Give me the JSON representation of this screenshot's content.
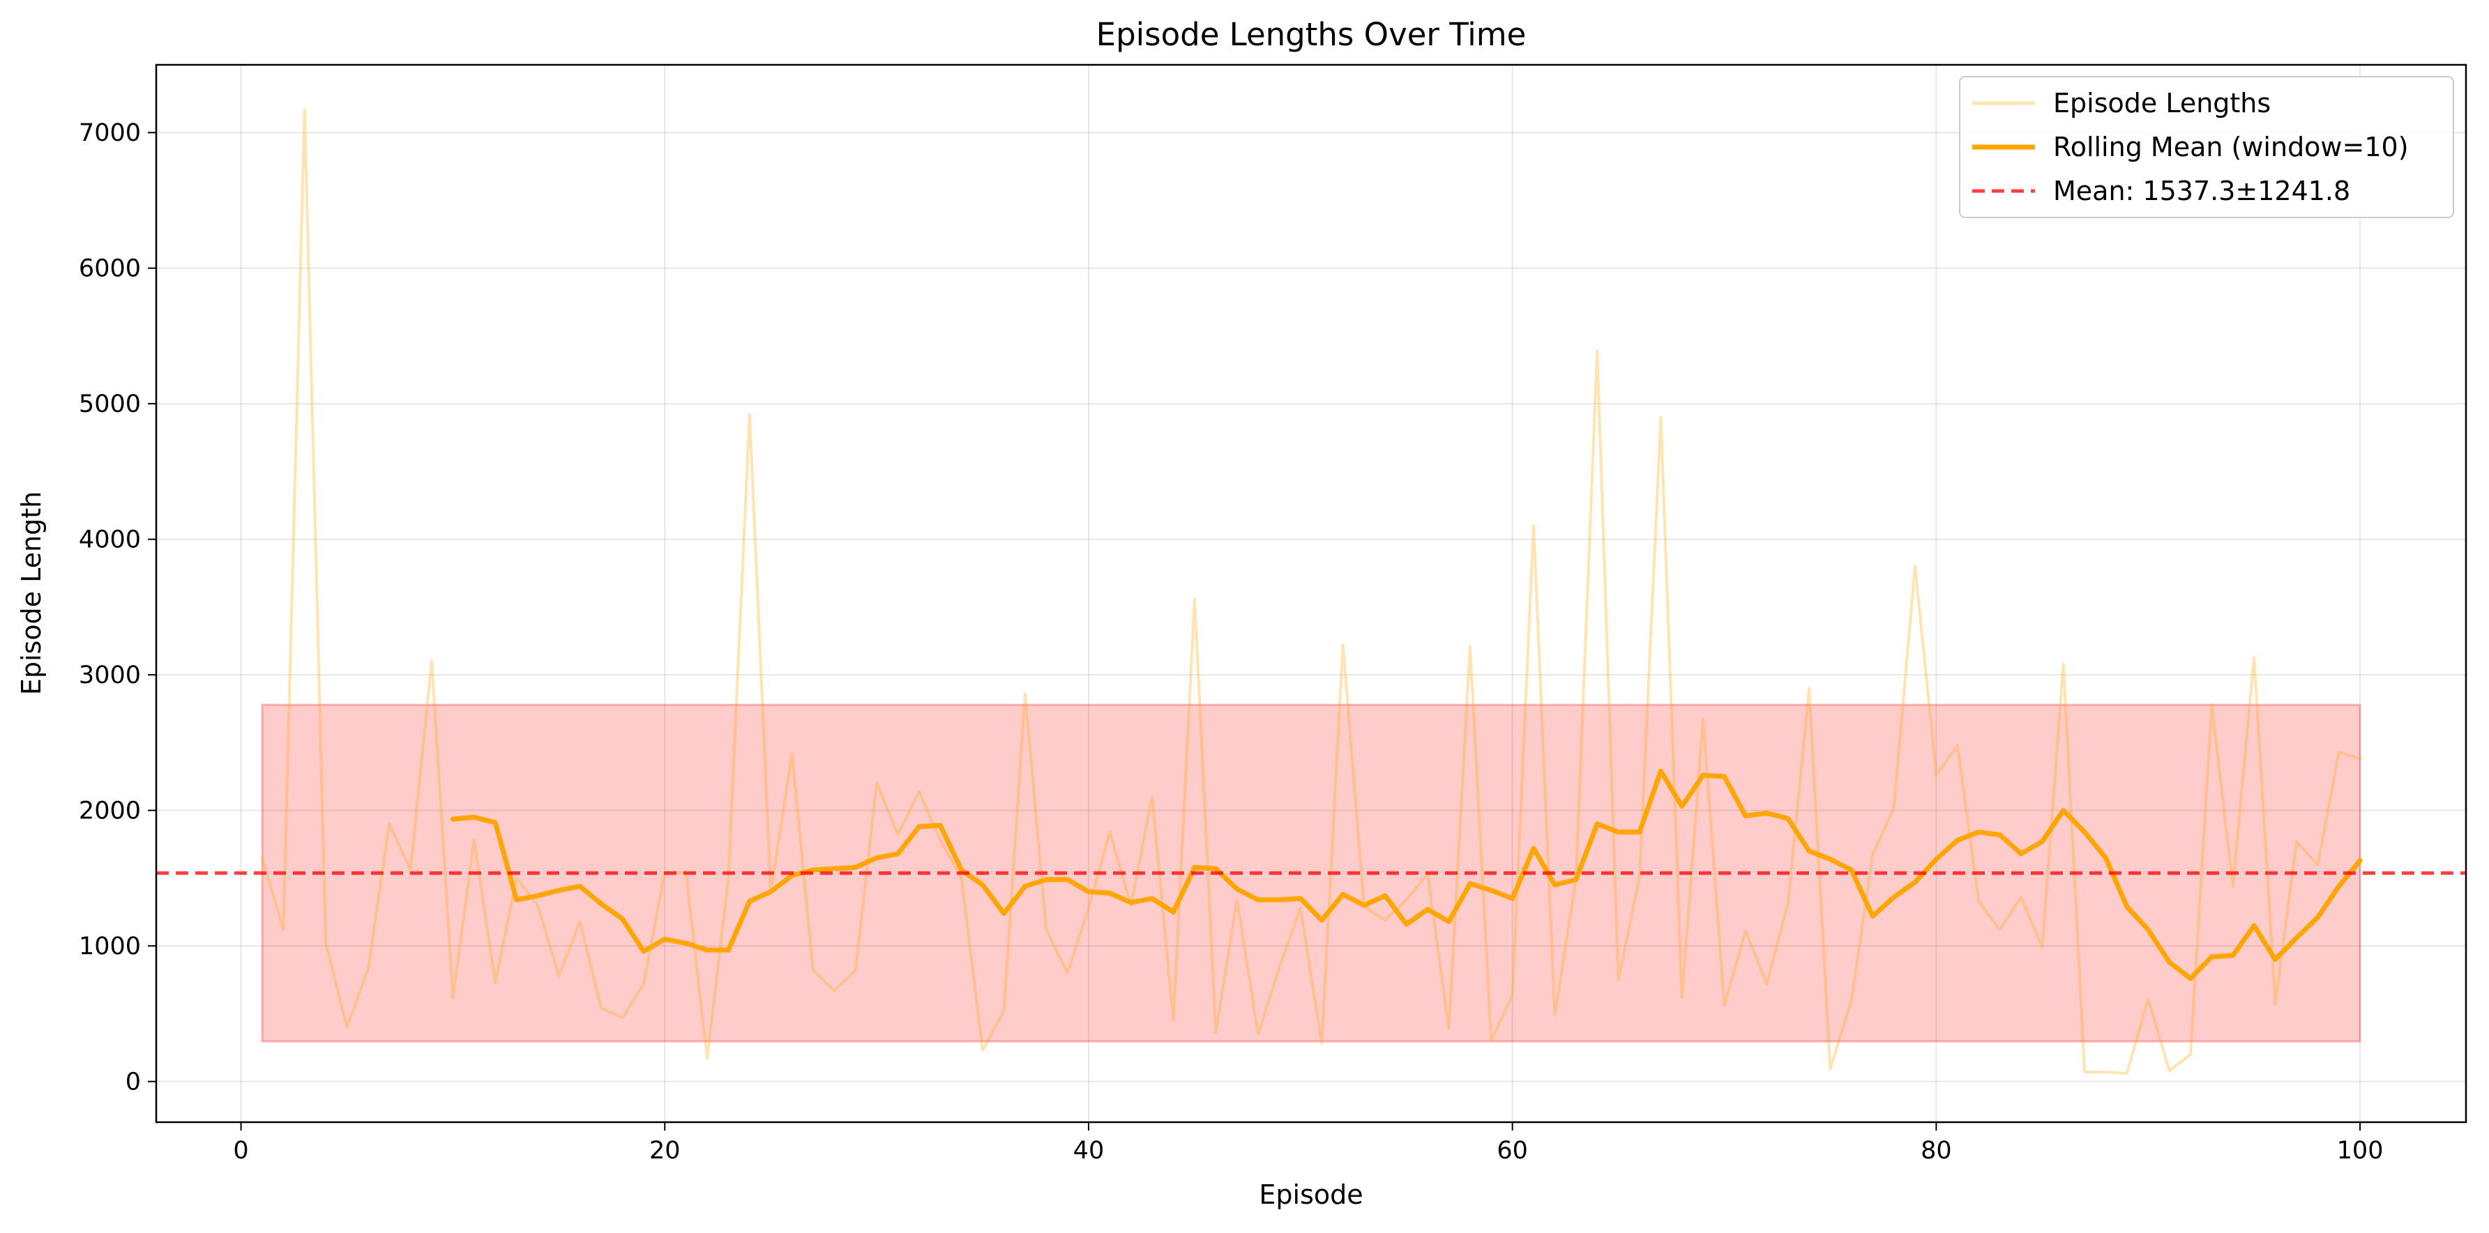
{
  "chart_data": {
    "type": "line",
    "title": "Episode Lengths Over Time",
    "xlabel": "Episode",
    "ylabel": "Episode Length",
    "xlim": [
      -4,
      105
    ],
    "ylim": [
      -300,
      7500
    ],
    "xticks": [
      0,
      20,
      40,
      60,
      80,
      100
    ],
    "yticks": [
      0,
      1000,
      2000,
      3000,
      4000,
      5000,
      6000,
      7000
    ],
    "grid": true,
    "legend_position": "top-right",
    "band": {
      "x_start": 1,
      "x_end": 100,
      "y_low": 295.5,
      "y_high": 2779.1,
      "color": "#ff0000"
    },
    "mean_line": {
      "value": 1537.3,
      "name": "Mean: 1537.3±1241.8",
      "color": "#ff0000"
    },
    "series": [
      {
        "name": "Episode Lengths",
        "color": "#ffa500",
        "x": [
          1,
          2,
          3,
          4,
          5,
          6,
          7,
          8,
          9,
          10,
          11,
          12,
          13,
          14,
          15,
          16,
          17,
          18,
          19,
          20,
          21,
          22,
          23,
          24,
          25,
          26,
          27,
          28,
          29,
          30,
          31,
          32,
          33,
          34,
          35,
          36,
          37,
          38,
          39,
          40,
          41,
          42,
          43,
          44,
          45,
          46,
          47,
          48,
          49,
          50,
          51,
          52,
          53,
          54,
          55,
          56,
          57,
          58,
          59,
          60,
          61,
          62,
          63,
          64,
          65,
          66,
          67,
          68,
          69,
          70,
          71,
          72,
          73,
          74,
          75,
          76,
          77,
          78,
          79,
          80,
          81,
          82,
          83,
          84,
          85,
          86,
          87,
          88,
          89,
          90,
          91,
          92,
          93,
          94,
          95,
          96,
          97,
          98,
          99,
          100
        ],
        "values": [
          1650,
          1120,
          7170,
          1020,
          400,
          830,
          1900,
          1560,
          3100,
          620,
          1780,
          730,
          1500,
          1300,
          780,
          1180,
          540,
          470,
          720,
          1540,
          1540,
          170,
          1500,
          4920,
          1400,
          2420,
          820,
          670,
          820,
          2200,
          1820,
          2140,
          1780,
          1500,
          230,
          520,
          2860,
          1120,
          800,
          1280,
          1840,
          1300,
          2100,
          450,
          3560,
          360,
          1340,
          350,
          840,
          1280,
          280,
          3220,
          1290,
          1190,
          1340,
          1530,
          390,
          3210,
          300,
          640,
          4100,
          490,
          1490,
          5390,
          750,
          1510,
          4900,
          620,
          2670,
          560,
          1110,
          720,
          1310,
          2900,
          90,
          600,
          1670,
          2020,
          3800,
          2260,
          2480,
          1330,
          1120,
          1360,
          990,
          3080,
          70,
          70,
          60,
          610,
          80,
          200,
          2780,
          1440,
          3130,
          570,
          1770,
          1600,
          2430,
          2380
        ]
      },
      {
        "name": "Rolling Mean (window=10)",
        "color": "#ffa500",
        "x": [
          10,
          11,
          12,
          13,
          14,
          15,
          16,
          17,
          18,
          19,
          20,
          21,
          22,
          23,
          24,
          25,
          26,
          27,
          28,
          29,
          30,
          31,
          32,
          33,
          34,
          35,
          36,
          37,
          38,
          39,
          40,
          41,
          42,
          43,
          44,
          45,
          46,
          47,
          48,
          49,
          50,
          51,
          52,
          53,
          54,
          55,
          56,
          57,
          58,
          59,
          60,
          61,
          62,
          63,
          64,
          65,
          66,
          67,
          68,
          69,
          70,
          71,
          72,
          73,
          74,
          75,
          76,
          77,
          78,
          79,
          80,
          81,
          82,
          83,
          84,
          85,
          86,
          87,
          88,
          89,
          90,
          91,
          92,
          93,
          94,
          95,
          96,
          97,
          98,
          99,
          100
        ],
        "values": [
          1936,
          1950,
          1910,
          1340,
          1370,
          1410,
          1440,
          1310,
          1200,
          960,
          1050,
          1020,
          970,
          970,
          1330,
          1400,
          1520,
          1560,
          1570,
          1580,
          1650,
          1680,
          1880,
          1890,
          1560,
          1450,
          1240,
          1440,
          1490,
          1490,
          1400,
          1390,
          1320,
          1350,
          1250,
          1580,
          1570,
          1420,
          1340,
          1340,
          1350,
          1190,
          1380,
          1300,
          1370,
          1160,
          1270,
          1180,
          1460,
          1410,
          1350,
          1720,
          1450,
          1490,
          1900,
          1840,
          1840,
          2290,
          2030,
          2260,
          2250,
          1960,
          1980,
          1940,
          1700,
          1640,
          1560,
          1220,
          1360,
          1470,
          1640,
          1780,
          1840,
          1820,
          1680,
          1770,
          2000,
          1840,
          1650,
          1290,
          1120,
          880,
          760,
          920,
          930,
          1150,
          900,
          1060,
          1210,
          1440,
          1630
        ]
      }
    ]
  }
}
